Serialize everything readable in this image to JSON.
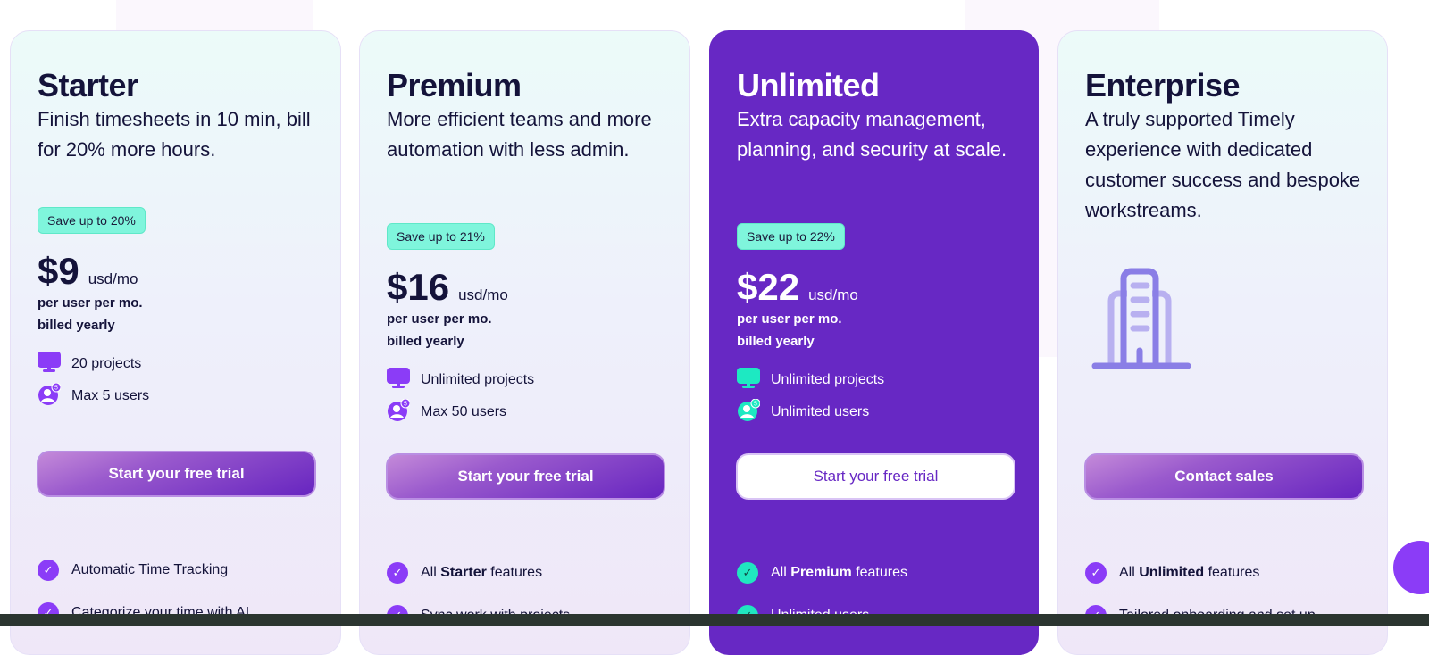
{
  "colors": {
    "accent": "#8b3cf7",
    "highlight_card": "#6728c4",
    "badge": "#7ff5dc"
  },
  "plans": [
    {
      "name": "Starter",
      "subtitle": "Finish timesheets in 10 min, bill for 20% more hours.",
      "badge": "Save up to 20%",
      "price": "$9",
      "unit": "usd/mo",
      "billing1": "per user per mo.",
      "billing2": "billed yearly",
      "feature1": "20 projects",
      "feature2": "Max 5 users",
      "cta": "Start your free trial",
      "checks": [
        {
          "pre": "Automatic Time Tracking",
          "bold": "",
          "post": ""
        },
        {
          "pre": "Categorize your time with AI",
          "bold": "",
          "post": ""
        }
      ]
    },
    {
      "name": "Premium",
      "subtitle": "More efficient teams and more automation with less admin.",
      "badge": "Save up to 21%",
      "price": "$16",
      "unit": "usd/mo",
      "billing1": "per user per mo.",
      "billing2": "billed yearly",
      "feature1": "Unlimited projects",
      "feature2": "Max 50 users",
      "cta": "Start your free trial",
      "checks": [
        {
          "pre": "All ",
          "bold": "Starter",
          "post": " features"
        },
        {
          "pre": "Sync work with projects",
          "bold": "",
          "post": ""
        }
      ]
    },
    {
      "name": "Unlimited",
      "subtitle": "Extra capacity management, planning, and security at scale.",
      "badge": "Save up to 22%",
      "price": "$22",
      "unit": "usd/mo",
      "billing1": "per user per mo.",
      "billing2": "billed yearly",
      "feature1": "Unlimited projects",
      "feature2": "Unlimited users",
      "cta": "Start your free trial",
      "checks": [
        {
          "pre": "All ",
          "bold": "Premium",
          "post": " features"
        },
        {
          "pre": "Unlimited users",
          "bold": "",
          "post": ""
        }
      ]
    },
    {
      "name": "Enterprise",
      "subtitle": "A truly supported Timely experience with dedicated customer success and bespoke workstreams.",
      "cta": "Contact sales",
      "checks": [
        {
          "pre": "All ",
          "bold": "Unlimited",
          "post": " features"
        },
        {
          "pre": "Tailored onboarding and set up",
          "bold": "",
          "post": ""
        }
      ]
    }
  ]
}
